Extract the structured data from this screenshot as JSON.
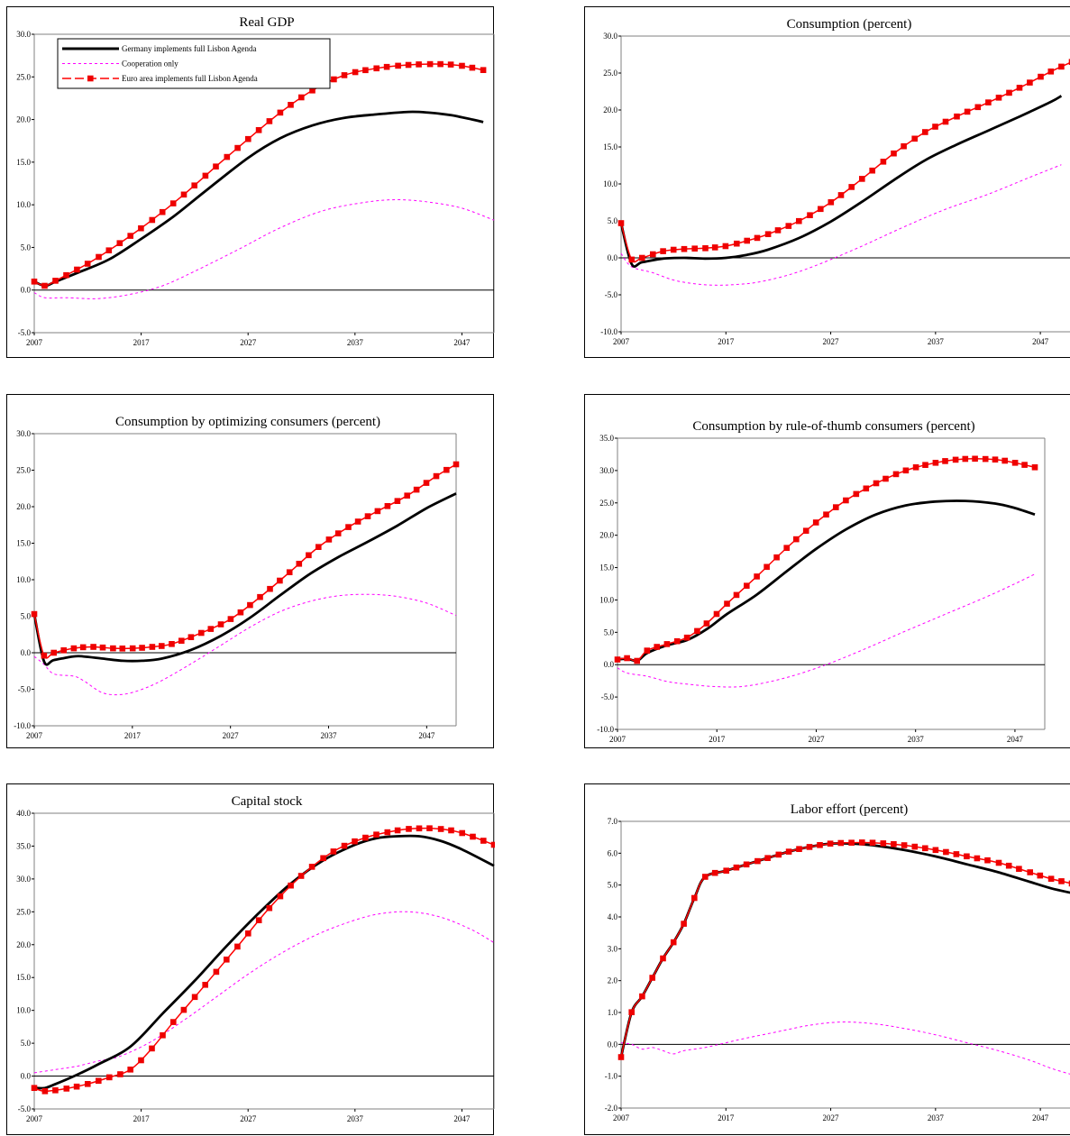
{
  "legend_entries": [
    "Germany implements full Lisbon Agenda",
    "Cooperation only",
    "Euro area implements full Lisbon Agenda"
  ],
  "colors": {
    "germany": "#000000",
    "cooperation": "#ff00ff",
    "euro": "#ff0000",
    "marker": "#ee0000"
  },
  "chart_data": [
    {
      "type": "line",
      "title": "Real GDP",
      "ylim": [
        -5,
        30
      ],
      "yticks": [
        -5,
        0,
        5,
        10,
        15,
        20,
        25,
        30
      ],
      "xlim": [
        2007,
        2050
      ],
      "xticks": [
        2007,
        2017,
        2027,
        2037,
        2047
      ],
      "legend": "top-left",
      "series": [
        {
          "name": "Germany implements full Lisbon Agenda",
          "x": [
            2007,
            2008,
            2009,
            2011,
            2014,
            2017,
            2020,
            2023,
            2027,
            2030,
            2033,
            2036,
            2039,
            2042,
            2044,
            2046,
            2048,
            2049
          ],
          "y": [
            1.0,
            0.5,
            1.0,
            2.0,
            3.6,
            6.0,
            8.6,
            11.6,
            15.5,
            17.8,
            19.3,
            20.2,
            20.6,
            20.9,
            20.8,
            20.5,
            20.0,
            19.7
          ]
        },
        {
          "name": "Cooperation only",
          "x": [
            2007,
            2008,
            2010,
            2013,
            2016,
            2019,
            2022,
            2026,
            2030,
            2034,
            2038,
            2041,
            2044,
            2047,
            2050
          ],
          "y": [
            -0.3,
            -0.9,
            -0.9,
            -1.0,
            -0.5,
            0.5,
            2.2,
            4.7,
            7.3,
            9.3,
            10.3,
            10.6,
            10.3,
            9.6,
            8.2
          ]
        },
        {
          "name": "Euro area implements full Lisbon Agenda",
          "markers": true,
          "x": [
            2007,
            2008,
            2009,
            2012,
            2015,
            2018,
            2021,
            2024,
            2027,
            2030,
            2033,
            2036,
            2039,
            2042,
            2045,
            2047,
            2049
          ],
          "y": [
            1.0,
            0.5,
            1.1,
            3.1,
            5.5,
            8.2,
            11.2,
            14.5,
            17.7,
            20.8,
            23.4,
            25.2,
            26.0,
            26.4,
            26.5,
            26.3,
            25.8
          ]
        }
      ]
    },
    {
      "type": "line",
      "title": "Consumption (percent)",
      "ylim": [
        -10,
        30
      ],
      "yticks": [
        -10,
        -5,
        0,
        5,
        10,
        15,
        20,
        25,
        30
      ],
      "xlim": [
        2007,
        2050
      ],
      "xticks": [
        2007,
        2017,
        2027,
        2037,
        2047
      ],
      "series": [
        {
          "name": "Germany implements full Lisbon Agenda",
          "x": [
            2007,
            2008,
            2009,
            2011,
            2013,
            2015,
            2017,
            2019,
            2021,
            2024,
            2027,
            2030,
            2033,
            2036,
            2039,
            2042,
            2045,
            2048,
            2049
          ],
          "y": [
            4.7,
            -0.8,
            -0.6,
            -0.1,
            0.0,
            -0.1,
            0.0,
            0.4,
            1.1,
            2.7,
            4.9,
            7.6,
            10.5,
            13.2,
            15.3,
            17.2,
            19.1,
            21.1,
            21.9
          ]
        },
        {
          "name": "Cooperation only",
          "x": [
            2007,
            2008,
            2010,
            2012,
            2014,
            2016,
            2018,
            2020,
            2023,
            2026,
            2030,
            2034,
            2038,
            2042,
            2046,
            2049
          ],
          "y": [
            0.6,
            -1.2,
            -2.0,
            -3.0,
            -3.5,
            -3.7,
            -3.6,
            -3.3,
            -2.3,
            -0.8,
            1.6,
            4.2,
            6.6,
            8.6,
            10.9,
            12.6
          ]
        },
        {
          "name": "Euro area implements full Lisbon Agenda",
          "markers": true,
          "x": [
            2007,
            2008,
            2009,
            2011,
            2013,
            2015,
            2017,
            2019,
            2021,
            2024,
            2027,
            2030,
            2033,
            2036,
            2039,
            2042,
            2045,
            2048,
            2050
          ],
          "y": [
            4.7,
            -0.2,
            0.0,
            0.9,
            1.2,
            1.3,
            1.6,
            2.3,
            3.2,
            5.0,
            7.5,
            10.7,
            14.1,
            17.0,
            19.1,
            21.0,
            23.0,
            25.2,
            26.5
          ]
        }
      ]
    },
    {
      "type": "line",
      "title": "Consumption by optimizing consumers (percent)",
      "ylim": [
        -10,
        30
      ],
      "yticks": [
        -10,
        -5,
        0,
        5,
        10,
        15,
        20,
        25,
        30
      ],
      "xlim": [
        2007,
        2050
      ],
      "xticks": [
        2007,
        2017,
        2027,
        2037,
        2047
      ],
      "series": [
        {
          "name": "Germany implements full Lisbon Agenda",
          "x": [
            2007,
            2008,
            2009,
            2011,
            2012,
            2014,
            2016,
            2018,
            2020,
            2023,
            2026,
            2029,
            2032,
            2035,
            2038,
            2041,
            2044,
            2047,
            2050
          ],
          "y": [
            5.3,
            -1.2,
            -1.0,
            -0.5,
            -0.5,
            -0.8,
            -1.1,
            -1.1,
            -0.8,
            0.4,
            2.3,
            4.8,
            7.8,
            10.7,
            13.1,
            15.2,
            17.4,
            19.8,
            21.8
          ]
        },
        {
          "name": "Cooperation only",
          "x": [
            2007,
            2008,
            2009,
            2011,
            2012,
            2014,
            2016,
            2018,
            2020,
            2023,
            2026,
            2029,
            2032,
            2035,
            2038,
            2041,
            2044,
            2047,
            2050
          ],
          "y": [
            -0.5,
            -1.6,
            -2.9,
            -3.2,
            -3.8,
            -5.5,
            -5.7,
            -5.0,
            -3.8,
            -1.5,
            1.0,
            3.5,
            5.6,
            7.0,
            7.8,
            8.0,
            7.7,
            6.8,
            5.1
          ]
        },
        {
          "name": "Euro area implements full Lisbon Agenda",
          "markers": true,
          "x": [
            2007,
            2008,
            2009,
            2011,
            2013,
            2015,
            2017,
            2019,
            2021,
            2024,
            2027,
            2030,
            2033,
            2036,
            2039,
            2042,
            2045,
            2048,
            2050
          ],
          "y": [
            5.3,
            -0.4,
            0.0,
            0.6,
            0.8,
            0.6,
            0.6,
            0.8,
            1.2,
            2.7,
            4.6,
            7.6,
            11.0,
            14.5,
            17.2,
            19.4,
            21.5,
            24.2,
            25.8
          ]
        }
      ]
    },
    {
      "type": "line",
      "title": "Consumption by rule-of-thumb consumers (percent)",
      "ylim": [
        -10,
        35
      ],
      "yticks": [
        -10,
        -5,
        0,
        5,
        10,
        15,
        20,
        25,
        30,
        35
      ],
      "xlim": [
        2007,
        2050
      ],
      "xticks": [
        2007,
        2017,
        2027,
        2037,
        2047
      ],
      "series": [
        {
          "name": "Germany implements full Lisbon Agenda",
          "x": [
            2007,
            2008,
            2009,
            2010,
            2012,
            2014,
            2016,
            2018,
            2021,
            2024,
            2027,
            2030,
            2033,
            2036,
            2039,
            2042,
            2045,
            2047,
            2049
          ],
          "y": [
            0.8,
            0.9,
            0.6,
            1.8,
            3.0,
            3.8,
            5.5,
            7.8,
            10.8,
            14.4,
            17.9,
            20.9,
            23.2,
            24.6,
            25.2,
            25.3,
            24.9,
            24.2,
            23.2
          ]
        },
        {
          "name": "Cooperation only",
          "x": [
            2007,
            2008,
            2010,
            2012,
            2014,
            2017,
            2020,
            2024,
            2028,
            2032,
            2036,
            2040,
            2044,
            2047,
            2049
          ],
          "y": [
            -0.5,
            -1.3,
            -1.8,
            -2.6,
            -3.0,
            -3.4,
            -3.3,
            -2.0,
            0.0,
            2.5,
            5.2,
            7.8,
            10.4,
            12.5,
            14.0
          ]
        },
        {
          "name": "Euro area implements full Lisbon Agenda",
          "markers": true,
          "x": [
            2007,
            2008,
            2009,
            2010,
            2012,
            2014,
            2016,
            2018,
            2021,
            2024,
            2027,
            2030,
            2033,
            2036,
            2039,
            2042,
            2045,
            2047,
            2049
          ],
          "y": [
            0.8,
            1.0,
            0.6,
            2.2,
            3.2,
            4.2,
            6.4,
            9.4,
            13.6,
            18.0,
            22.0,
            25.4,
            28.0,
            30.0,
            31.2,
            31.8,
            31.7,
            31.2,
            30.5
          ]
        }
      ]
    },
    {
      "type": "line",
      "title": "Capital stock",
      "ylim": [
        -5,
        40
      ],
      "yticks": [
        -5,
        0,
        5,
        10,
        15,
        20,
        25,
        30,
        35,
        40
      ],
      "xlim": [
        2007,
        2050
      ],
      "xticks": [
        2007,
        2017,
        2027,
        2037,
        2047
      ],
      "series": [
        {
          "name": "Germany implements full Lisbon Agenda",
          "x": [
            2007,
            2008,
            2009,
            2011,
            2013,
            2016,
            2019,
            2022,
            2025,
            2028,
            2031,
            2034,
            2037,
            2039,
            2041,
            2043,
            2045,
            2047,
            2050
          ],
          "y": [
            -1.8,
            -1.8,
            -1.2,
            0.2,
            1.8,
            4.5,
            9.5,
            14.5,
            19.8,
            24.8,
            29.3,
            32.8,
            35.2,
            36.2,
            36.5,
            36.5,
            35.8,
            34.5,
            32.0
          ]
        },
        {
          "name": "Cooperation only",
          "x": [
            2007,
            2009,
            2011,
            2013,
            2015,
            2018,
            2021,
            2024,
            2027,
            2030,
            2033,
            2036,
            2039,
            2042,
            2045,
            2048,
            2050
          ],
          "y": [
            0.5,
            1.0,
            1.5,
            2.3,
            3.0,
            5.3,
            8.5,
            12.0,
            15.5,
            18.6,
            21.2,
            23.2,
            24.6,
            25.0,
            24.2,
            22.2,
            20.3
          ]
        },
        {
          "name": "Euro area implements full Lisbon Agenda",
          "markers": true,
          "x": [
            2007,
            2008,
            2010,
            2012,
            2014,
            2016,
            2018,
            2020,
            2023,
            2026,
            2029,
            2032,
            2035,
            2038,
            2041,
            2043,
            2045,
            2047,
            2050
          ],
          "y": [
            -1.8,
            -2.3,
            -1.9,
            -1.2,
            -0.2,
            1.0,
            4.2,
            8.2,
            13.9,
            19.7,
            25.6,
            30.5,
            34.2,
            36.3,
            37.4,
            37.7,
            37.6,
            37.0,
            35.2
          ]
        }
      ]
    },
    {
      "type": "line",
      "title": "Labor effort (percent)",
      "ylim": [
        -2,
        7
      ],
      "yticks": [
        -2,
        -1,
        0,
        1,
        2,
        3,
        4,
        5,
        6,
        7
      ],
      "xlim": [
        2007,
        2050
      ],
      "xticks": [
        2007,
        2017,
        2027,
        2037,
        2047
      ],
      "series": [
        {
          "name": "Germany implements full Lisbon Agenda",
          "x": [
            2007,
            2008,
            2009,
            2010,
            2011,
            2012,
            2013,
            2014,
            2015,
            2017,
            2019,
            2021,
            2023,
            2025,
            2027,
            2029,
            2031,
            2034,
            2037,
            2040,
            2043,
            2046,
            2048,
            2050
          ],
          "y": [
            -0.4,
            1.0,
            1.5,
            2.1,
            2.7,
            3.2,
            3.8,
            4.6,
            5.25,
            5.45,
            5.65,
            5.85,
            6.05,
            6.2,
            6.3,
            6.3,
            6.25,
            6.1,
            5.9,
            5.65,
            5.4,
            5.1,
            4.9,
            4.75
          ]
        },
        {
          "name": "Cooperation only",
          "x": [
            2007,
            2008,
            2009,
            2010,
            2011,
            2012,
            2013,
            2015,
            2017,
            2019,
            2022,
            2025,
            2028,
            2031,
            2034,
            2037,
            2040,
            2043,
            2046,
            2048,
            2050
          ],
          "y": [
            0.05,
            0.0,
            -0.15,
            -0.1,
            -0.2,
            -0.3,
            -0.2,
            -0.1,
            0.05,
            0.2,
            0.4,
            0.6,
            0.7,
            0.65,
            0.5,
            0.3,
            0.05,
            -0.2,
            -0.5,
            -0.75,
            -0.95
          ]
        },
        {
          "name": "Euro area implements full Lisbon Agenda",
          "markers": true,
          "x": [
            2007,
            2008,
            2009,
            2010,
            2011,
            2012,
            2013,
            2014,
            2015,
            2017,
            2019,
            2021,
            2023,
            2025,
            2027,
            2029,
            2031,
            2034,
            2037,
            2040,
            2043,
            2046,
            2048,
            2050
          ],
          "y": [
            -0.4,
            1.0,
            1.5,
            2.1,
            2.7,
            3.2,
            3.8,
            4.6,
            5.25,
            5.45,
            5.65,
            5.85,
            6.05,
            6.2,
            6.3,
            6.33,
            6.33,
            6.25,
            6.1,
            5.9,
            5.7,
            5.4,
            5.2,
            5.05
          ]
        }
      ]
    }
  ]
}
